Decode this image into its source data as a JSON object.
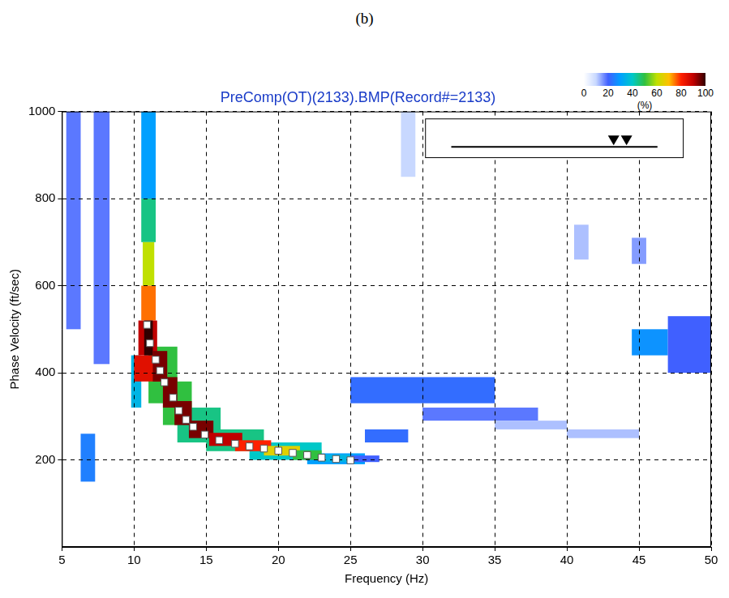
{
  "chart_data": {
    "type": "heatmap",
    "panel_label": "(b)",
    "title": "PreComp(OT)(2133).BMP(Record#=2133)",
    "x_label": "Frequency (Hz)",
    "y_label": "Phase Velocity (ft/sec)",
    "xlim": [
      5,
      50
    ],
    "xticks": [
      5,
      10,
      15,
      20,
      25,
      30,
      35,
      40,
      45,
      50
    ],
    "ylim": [
      0,
      1000
    ],
    "yticks": [
      200,
      400,
      600,
      800,
      1000
    ],
    "grid": true,
    "heatmap": {
      "cells": [
        [
          5.3,
          6.3,
          500,
          1000,
          18
        ],
        [
          7.2,
          8.3,
          420,
          1000,
          18
        ],
        [
          6.3,
          7.3,
          150,
          260,
          25
        ],
        [
          25,
          35,
          330,
          390,
          22
        ],
        [
          26,
          29,
          240,
          270,
          22
        ],
        [
          30,
          38,
          290,
          320,
          18
        ],
        [
          35,
          40,
          270,
          290,
          12
        ],
        [
          40,
          45,
          250,
          270,
          12
        ],
        [
          44.5,
          47,
          440,
          500,
          28
        ],
        [
          47,
          50,
          400,
          530,
          20
        ],
        [
          28.5,
          29.5,
          850,
          1000,
          10
        ],
        [
          40.5,
          41.5,
          660,
          740,
          12
        ],
        [
          44.5,
          45.5,
          650,
          710,
          15
        ],
        [
          9.8,
          10.5,
          320,
          440,
          35
        ],
        [
          11,
          13,
          330,
          460,
          50
        ],
        [
          12,
          14,
          280,
          380,
          50
        ],
        [
          13,
          16,
          240,
          320,
          45
        ],
        [
          15,
          19,
          220,
          270,
          45
        ],
        [
          18,
          23,
          200,
          240,
          40
        ],
        [
          22,
          26,
          190,
          215,
          30
        ],
        [
          10.5,
          11.5,
          800,
          1000,
          30
        ],
        [
          10.5,
          11.5,
          700,
          800,
          45
        ],
        [
          10.6,
          11.4,
          600,
          700,
          60
        ],
        [
          10.5,
          11.5,
          520,
          600,
          75
        ],
        [
          10.3,
          11.6,
          440,
          520,
          90
        ],
        [
          10.0,
          11.8,
          380,
          440,
          85
        ],
        [
          10.7,
          11.3,
          440,
          520,
          100
        ],
        [
          11.3,
          12.3,
          380,
          450,
          95
        ],
        [
          12,
          13,
          320,
          390,
          95
        ],
        [
          12.8,
          14,
          280,
          335,
          95
        ],
        [
          13.8,
          15.5,
          250,
          290,
          95
        ],
        [
          15.2,
          17.5,
          232,
          262,
          90
        ],
        [
          17,
          19.5,
          220,
          245,
          80
        ],
        [
          19,
          21.5,
          210,
          232,
          65
        ],
        [
          21,
          23,
          200,
          222,
          50
        ],
        [
          23,
          25,
          195,
          212,
          35
        ],
        [
          25,
          27,
          195,
          210,
          20
        ]
      ],
      "zlim": [
        0,
        100
      ],
      "zticks": [
        0,
        20,
        40,
        60,
        80,
        100
      ],
      "z_label": "(%)"
    },
    "x": [
      10.9,
      11.1,
      11.5,
      11.8,
      12.1,
      12.7,
      13.1,
      13.6,
      14.1,
      14.9,
      15.9,
      17,
      18,
      19,
      20,
      21,
      22,
      23,
      24,
      25
    ],
    "values": [
      510,
      468,
      430,
      405,
      378,
      343,
      313,
      292,
      276,
      258,
      245,
      237,
      231,
      226,
      221,
      216,
      211,
      205,
      202,
      199
    ],
    "marker": "square",
    "color": "#ffffff"
  }
}
